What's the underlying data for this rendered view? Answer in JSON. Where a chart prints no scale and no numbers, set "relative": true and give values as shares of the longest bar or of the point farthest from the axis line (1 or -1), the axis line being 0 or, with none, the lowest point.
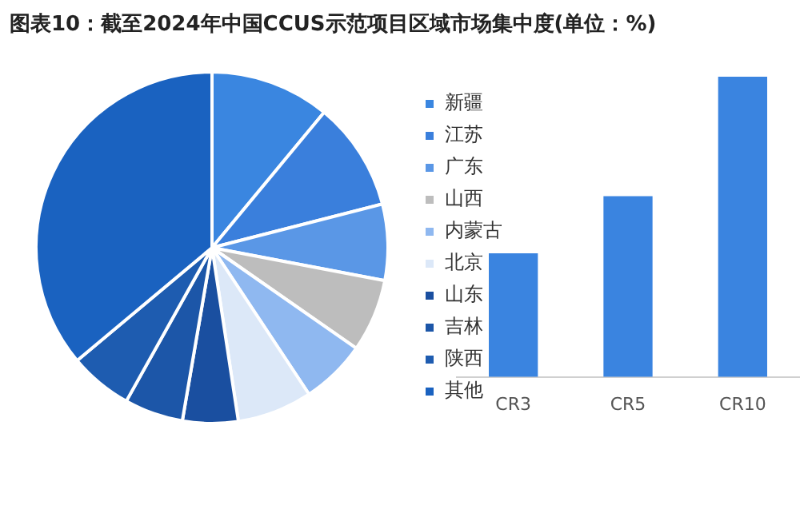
{
  "chart_data": [
    {
      "type": "pie",
      "title": "图表10：截至2024年中国CCUS示范项目区域市场集中度(单位：%)",
      "categories": [
        "新疆",
        "江苏",
        "广东",
        "山西",
        "内蒙古",
        "北京",
        "山东",
        "吉林",
        "陕西",
        "其他"
      ],
      "values": [
        11,
        10,
        7,
        6.7,
        6,
        6.9,
        5.1,
        5.4,
        5.8,
        36.1
      ],
      "colors": [
        "#3a86e0",
        "#3a7fdc",
        "#5a97e6",
        "#bdbdbd",
        "#8fb8f0",
        "#dce8f8",
        "#1a4fa0",
        "#1c56a8",
        "#1e5cb0",
        "#1a62c0"
      ],
      "legend": "right"
    },
    {
      "type": "bar",
      "categories": [
        "CR3",
        "CR5",
        "CR10"
      ],
      "values": [
        0.41,
        0.6,
        1
      ],
      "relative": true,
      "color": "#3a84e0",
      "legend": false
    }
  ]
}
